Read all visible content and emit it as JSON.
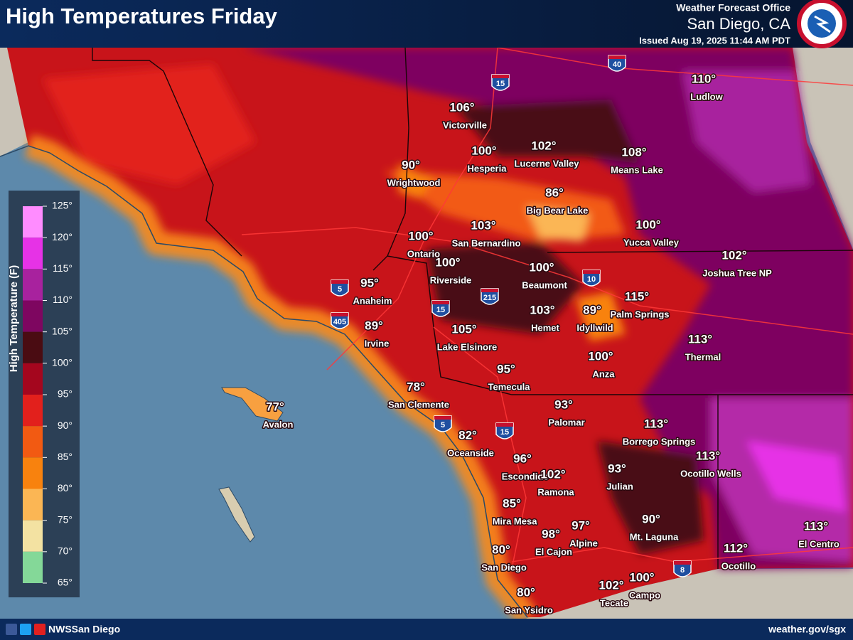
{
  "header": {
    "title": "High Temperatures Friday",
    "office": "Weather Forecast Office",
    "location": "San Diego, CA",
    "issued": "Issued Aug 19, 2025 11:44 AM PDT"
  },
  "legend": {
    "title": "High Temperature (F)",
    "ticks": [
      "125°",
      "120°",
      "115°",
      "110°",
      "105°",
      "100°",
      "95°",
      "90°",
      "85°",
      "80°",
      "75°",
      "70°",
      "65°"
    ],
    "colors": [
      "#ff8cff",
      "#e632e6",
      "#a8229e",
      "#7e0660",
      "#4a0c12",
      "#a4061e",
      "#e2201c",
      "#f25a12",
      "#f8820e",
      "#fbb654",
      "#f3e2a2",
      "#84d898"
    ]
  },
  "cities": [
    {
      "temp": "106°",
      "name": "Victorville"
    },
    {
      "temp": "110°",
      "name": "Ludlow"
    },
    {
      "temp": "100°",
      "name": "Hesperia"
    },
    {
      "temp": "102°",
      "name": "Lucerne Valley"
    },
    {
      "temp": "108°",
      "name": "Means Lake"
    },
    {
      "temp": "90°",
      "name": "Wrightwood"
    },
    {
      "temp": "86°",
      "name": "Big Bear Lake"
    },
    {
      "temp": "100°",
      "name": "Ontario"
    },
    {
      "temp": "103°",
      "name": "San Bernardino"
    },
    {
      "temp": "100°",
      "name": "Yucca Valley"
    },
    {
      "temp": "102°",
      "name": "Joshua Tree NP"
    },
    {
      "temp": "100°",
      "name": "Riverside"
    },
    {
      "temp": "100°",
      "name": "Beaumont"
    },
    {
      "temp": "95°",
      "name": "Anaheim"
    },
    {
      "temp": "115°",
      "name": "Palm Springs"
    },
    {
      "temp": "103°",
      "name": "Hemet"
    },
    {
      "temp": "89°",
      "name": "Idyllwild"
    },
    {
      "temp": "89°",
      "name": "Irvine"
    },
    {
      "temp": "105°",
      "name": "Lake Elsinore"
    },
    {
      "temp": "113°",
      "name": "Thermal"
    },
    {
      "temp": "100°",
      "name": "Anza"
    },
    {
      "temp": "95°",
      "name": "Temecula"
    },
    {
      "temp": "78°",
      "name": "San Clemente"
    },
    {
      "temp": "77°",
      "name": "Avalon"
    },
    {
      "temp": "93°",
      "name": "Palomar"
    },
    {
      "temp": "113°",
      "name": "Borrego Springs"
    },
    {
      "temp": "82°",
      "name": "Oceanside"
    },
    {
      "temp": "96°",
      "name": "Escondido"
    },
    {
      "temp": "113°",
      "name": "Ocotillo Wells"
    },
    {
      "temp": "102°",
      "name": "Ramona"
    },
    {
      "temp": "93°",
      "name": "Julian"
    },
    {
      "temp": "85°",
      "name": "Mira Mesa"
    },
    {
      "temp": "90°",
      "name": "Mt. Laguna"
    },
    {
      "temp": "98°",
      "name": "El Cajon"
    },
    {
      "temp": "97°",
      "name": "Alpine"
    },
    {
      "temp": "113°",
      "name": "El Centro"
    },
    {
      "temp": "80°",
      "name": "San Diego"
    },
    {
      "temp": "112°",
      "name": "Ocotillo"
    },
    {
      "temp": "100°",
      "name": "Campo"
    },
    {
      "temp": "102°",
      "name": "Tecate"
    },
    {
      "temp": "80°",
      "name": "San Ysidro"
    }
  ],
  "highways": [
    "40",
    "15",
    "5",
    "405",
    "15",
    "215",
    "10",
    "15",
    "5",
    "8"
  ],
  "footer": {
    "handle": "NWSSan Diego",
    "website": "weather.gov/sgx"
  }
}
